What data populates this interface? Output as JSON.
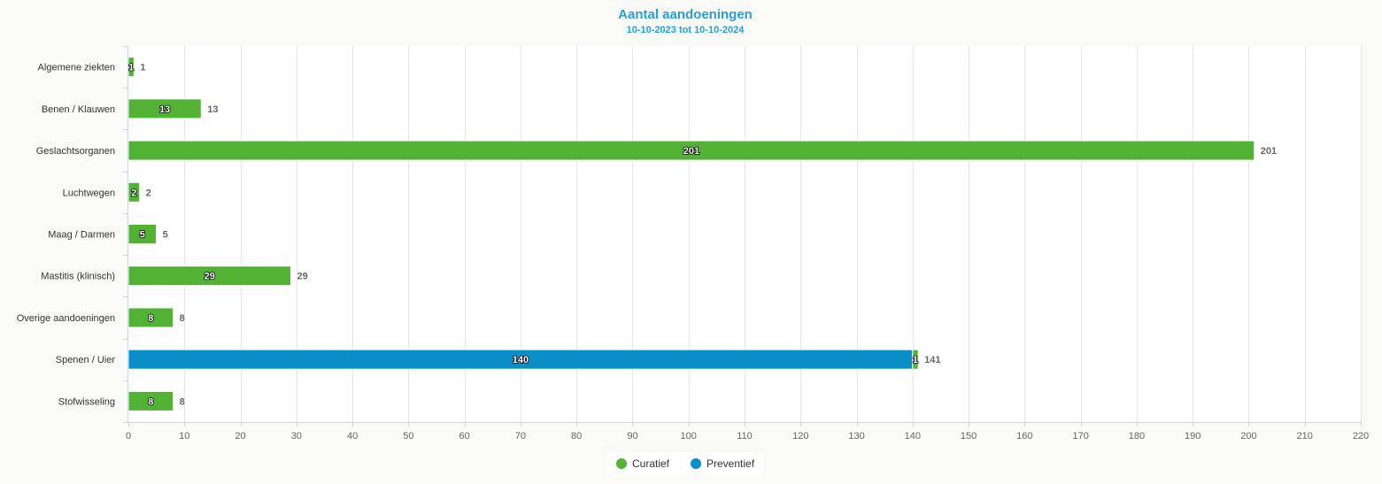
{
  "chart_data": {
    "type": "bar",
    "orientation": "horizontal",
    "stacked": true,
    "title": "Aantal aandoeningen",
    "subtitle": "10-10-2023 tot 10-10-2024",
    "categories": [
      "Algemene ziekten",
      "Benen / Klauwen",
      "Geslachtsorganen",
      "Luchtwegen",
      "Maag / Darmen",
      "Mastitis (klinisch)",
      "Overige aandoeningen",
      "Spenen / Uier",
      "Stofwisseling"
    ],
    "series": [
      {
        "name": "Curatief",
        "color": "#51b233",
        "values": [
          1,
          13,
          201,
          2,
          5,
          29,
          8,
          1,
          8
        ]
      },
      {
        "name": "Preventief",
        "color": "#0a8ec8",
        "values": [
          0,
          0,
          0,
          0,
          0,
          0,
          0,
          140,
          0
        ]
      }
    ],
    "totals": [
      1,
      13,
      201,
      2,
      5,
      29,
      8,
      141,
      8
    ],
    "xlim": [
      0,
      220
    ],
    "xticks": [
      0,
      10,
      20,
      30,
      40,
      50,
      60,
      70,
      80,
      90,
      100,
      110,
      120,
      130,
      140,
      150,
      160,
      170,
      180,
      190,
      200,
      210,
      220
    ],
    "grid": true,
    "legend_position": "bottom-center",
    "title_color": "#2a9fd6"
  }
}
